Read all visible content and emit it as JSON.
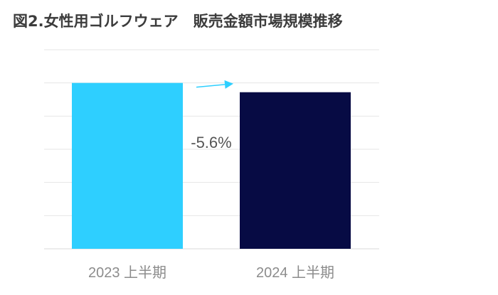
{
  "chart_data": {
    "type": "bar",
    "title": "図2.女性用ゴルフウェア　販売金額市場規模推移",
    "categories": [
      "2023 上半期",
      "2024 上半期"
    ],
    "values": [
      100,
      94.4
    ],
    "ylim": [
      0,
      120
    ],
    "grid": true,
    "bar_colors": [
      "#2ecfff",
      "#070b44"
    ],
    "annotation": "-5.6%",
    "arrow_color": "#2ecfff",
    "gridline_color": "#e6e6e6",
    "tick_label_color": "#8c8c8c"
  }
}
